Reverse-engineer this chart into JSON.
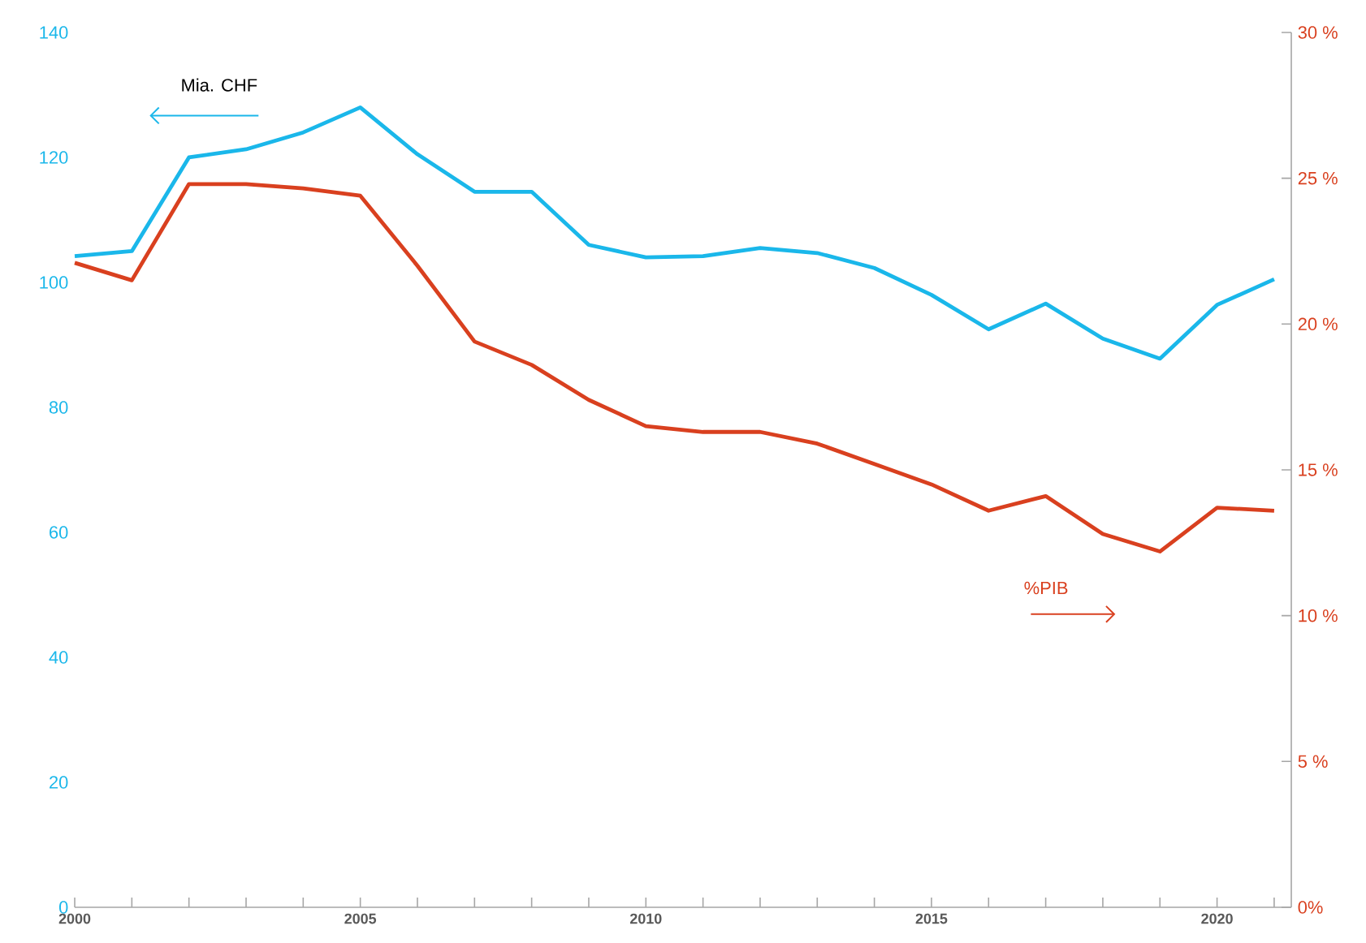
{
  "chart_data": {
    "type": "line",
    "x": [
      2000,
      2001,
      2002,
      2003,
      2004,
      2005,
      2006,
      2007,
      2008,
      2009,
      2010,
      2011,
      2012,
      2013,
      2014,
      2015,
      2016,
      2017,
      2018,
      2019,
      2020,
      2021
    ],
    "series": [
      {
        "name": "Mia. CHF",
        "color": "#1ab7ea",
        "values": [
          104.2,
          105,
          120,
          121.3,
          124,
          128,
          120.5,
          114.5,
          114.5,
          106,
          104,
          104.2,
          105.5,
          104.7,
          102.3,
          98,
          92.5,
          96.6,
          91,
          87.8,
          96.4,
          100.5
        ]
      },
      {
        "name": "%PIB",
        "color": "#d9401f",
        "axis": "y2",
        "values": [
          22.1,
          21.5,
          24.8,
          24.8,
          24.65,
          24.4,
          22.0,
          19.4,
          18.6,
          17.4,
          16.5,
          16.3,
          16.3,
          15.9,
          15.2,
          14.5,
          13.6,
          14.1,
          12.8,
          12.2,
          13.7,
          13.6
        ]
      }
    ],
    "xlim": [
      2000,
      2021.3
    ],
    "xticks": [
      2000,
      {
        "value": 2001,
        "label": null
      },
      {
        "value": 2002,
        "label": null
      },
      {
        "value": 2003,
        "label": null
      },
      {
        "value": 2004,
        "label": null
      },
      2005,
      {
        "value": 2006,
        "label": null
      },
      {
        "value": 2007,
        "label": null
      },
      {
        "value": 2008,
        "label": null
      },
      {
        "value": 2009,
        "label": null
      },
      2010,
      {
        "value": 2011,
        "label": null
      },
      {
        "value": 2012,
        "label": null
      },
      {
        "value": 2013,
        "label": null
      },
      {
        "value": 2014,
        "label": null
      },
      2015,
      {
        "value": 2016,
        "label": null
      },
      {
        "value": 2017,
        "label": null
      },
      {
        "value": 2018,
        "label": null
      },
      {
        "value": 2019,
        "label": null
      },
      2020,
      {
        "value": 2021,
        "label": null
      }
    ],
    "ylim": [
      0,
      140
    ],
    "yticks": [
      0,
      20,
      40,
      60,
      80,
      100,
      120,
      140
    ],
    "y2lim": [
      0,
      30
    ],
    "y2ticks": [
      {
        "value": 0,
        "label": "0%"
      },
      {
        "value": 5,
        "label": "5 %"
      },
      {
        "value": 10,
        "label": "10 %"
      },
      {
        "value": 15,
        "label": "15 %"
      },
      {
        "value": 20,
        "label": "20 %"
      },
      {
        "value": 25,
        "label": "25 %"
      },
      {
        "value": 30,
        "label": "30 %"
      }
    ],
    "legend": false
  }
}
